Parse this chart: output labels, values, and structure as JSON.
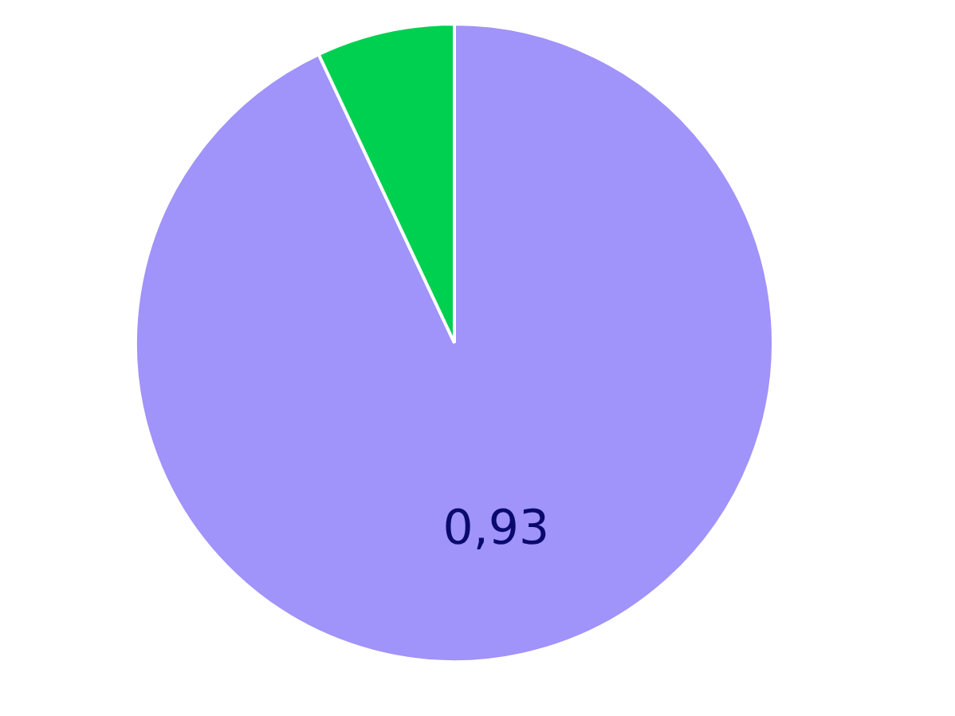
{
  "chart_data": {
    "type": "pie",
    "categories": [
      null,
      null
    ],
    "values": [
      0.93,
      0.07
    ],
    "colors": [
      "#a093f9",
      "#00d050"
    ],
    "value_labels": [
      "0,93",
      null
    ]
  }
}
